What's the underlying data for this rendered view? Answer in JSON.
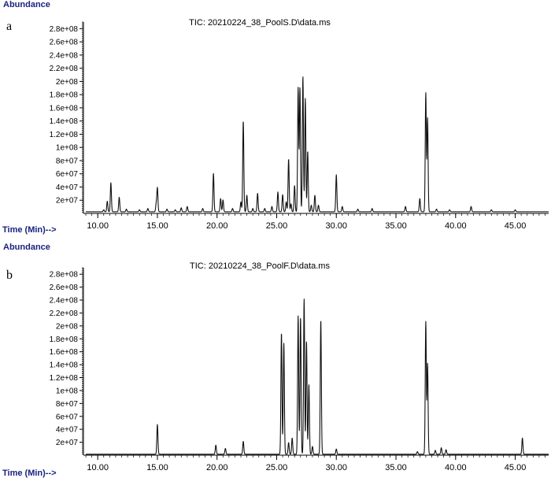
{
  "chart_data": [
    {
      "type": "line",
      "panel_label": "a",
      "title": "TIC: 20210224_38_PoolS.D\\data.ms",
      "ylabel": "Abundance",
      "xlabel": "Time (Min)-->",
      "xlim": [
        8.8,
        47.8
      ],
      "ylim": [
        0,
        290000000.0
      ],
      "x_ticks": [
        10,
        15,
        20,
        25,
        30,
        35,
        40,
        45
      ],
      "x_tick_labels": [
        "10.00",
        "15.00",
        "20.00",
        "25.00",
        "30.00",
        "35.00",
        "40.00",
        "45.00"
      ],
      "y_ticks": [
        20000000.0,
        40000000.0,
        60000000.0,
        80000000.0,
        100000000.0,
        120000000.0,
        140000000.0,
        160000000.0,
        180000000.0,
        200000000.0,
        220000000.0,
        240000000.0,
        260000000.0,
        280000000.0
      ],
      "y_tick_labels": [
        "2e+07",
        "4e+07",
        "6e+07",
        "8e+07",
        "1e+08",
        "1.2e+08",
        "1.4e+08",
        "1.6e+08",
        "1.8e+08",
        "2e+08",
        "2.2e+08",
        "2.4e+08",
        "2.6e+08",
        "2.8e+08"
      ],
      "baseline": 2500000,
      "peaks": [
        [
          10.5,
          3000000
        ],
        [
          10.8,
          16000000
        ],
        [
          11.1,
          44000000
        ],
        [
          11.8,
          22000000
        ],
        [
          12.4,
          4000000
        ],
        [
          13.5,
          3000000
        ],
        [
          14.2,
          5000000
        ],
        [
          14.9,
          12000000
        ],
        [
          15.0,
          36000000
        ],
        [
          15.8,
          4000000
        ],
        [
          16.5,
          3000000
        ],
        [
          17.0,
          6000000
        ],
        [
          17.5,
          8000000
        ],
        [
          18.8,
          5000000
        ],
        [
          19.7,
          58000000
        ],
        [
          20.3,
          20000000
        ],
        [
          20.5,
          18000000
        ],
        [
          21.3,
          5000000
        ],
        [
          22.0,
          15000000
        ],
        [
          22.2,
          138000000
        ],
        [
          22.5,
          25000000
        ],
        [
          23.0,
          5000000
        ],
        [
          23.4,
          28000000
        ],
        [
          24.0,
          5000000
        ],
        [
          24.6,
          8000000
        ],
        [
          25.1,
          30000000
        ],
        [
          25.5,
          26000000
        ],
        [
          25.8,
          15000000
        ],
        [
          26.0,
          80000000
        ],
        [
          26.2,
          12000000
        ],
        [
          26.5,
          40000000
        ],
        [
          26.8,
          188000000
        ],
        [
          26.95,
          188000000
        ],
        [
          27.2,
          205000000
        ],
        [
          27.4,
          172000000
        ],
        [
          27.6,
          92000000
        ],
        [
          27.9,
          10000000
        ],
        [
          28.2,
          25000000
        ],
        [
          28.5,
          10000000
        ],
        [
          30.0,
          56000000
        ],
        [
          30.5,
          8000000
        ],
        [
          31.8,
          4000000
        ],
        [
          33.0,
          5000000
        ],
        [
          35.8,
          8000000
        ],
        [
          37.0,
          20000000
        ],
        [
          37.5,
          180000000
        ],
        [
          37.65,
          142000000
        ],
        [
          38.4,
          4000000
        ],
        [
          39.5,
          3000000
        ],
        [
          41.3,
          8000000
        ],
        [
          43.0,
          3000000
        ],
        [
          45.0,
          3000000
        ]
      ]
    },
    {
      "type": "line",
      "panel_label": "b",
      "title": "TIC: 20210224_38_PoolF.D\\data.ms",
      "ylabel": "Abundance",
      "xlabel": "Time (Min)-->",
      "xlim": [
        8.8,
        47.8
      ],
      "ylim": [
        0,
        290000000.0
      ],
      "x_ticks": [
        10,
        15,
        20,
        25,
        30,
        35,
        40,
        45
      ],
      "x_tick_labels": [
        "10.00",
        "15.00",
        "20.00",
        "25.00",
        "30.00",
        "35.00",
        "40.00",
        "45.00"
      ],
      "y_ticks": [
        20000000.0,
        40000000.0,
        60000000.0,
        80000000.0,
        100000000.0,
        120000000.0,
        140000000.0,
        160000000.0,
        180000000.0,
        200000000.0,
        220000000.0,
        240000000.0,
        260000000.0,
        280000000.0
      ],
      "y_tick_labels": [
        "2e+07",
        "4e+07",
        "6e+07",
        "8e+07",
        "1e+08",
        "1.2e+08",
        "1.4e+08",
        "1.6e+08",
        "1.8e+08",
        "2e+08",
        "2.2e+08",
        "2.4e+08",
        "2.6e+08",
        "2.8e+08"
      ],
      "baseline": 1500000,
      "peaks": [
        [
          15.0,
          46000000
        ],
        [
          19.9,
          14000000
        ],
        [
          20.7,
          9000000
        ],
        [
          22.2,
          20000000
        ],
        [
          25.4,
          188000000
        ],
        [
          25.6,
          172000000
        ],
        [
          26.0,
          18000000
        ],
        [
          26.3,
          25000000
        ],
        [
          26.8,
          214000000
        ],
        [
          27.0,
          212000000
        ],
        [
          27.3,
          240000000
        ],
        [
          27.5,
          175000000
        ],
        [
          27.7,
          108000000
        ],
        [
          28.0,
          12000000
        ],
        [
          28.7,
          208000000
        ],
        [
          30.0,
          8000000
        ],
        [
          36.8,
          4000000
        ],
        [
          37.5,
          205000000
        ],
        [
          37.65,
          140000000
        ],
        [
          38.3,
          6000000
        ],
        [
          38.8,
          10000000
        ],
        [
          39.2,
          7000000
        ],
        [
          45.6,
          25000000
        ]
      ]
    }
  ]
}
